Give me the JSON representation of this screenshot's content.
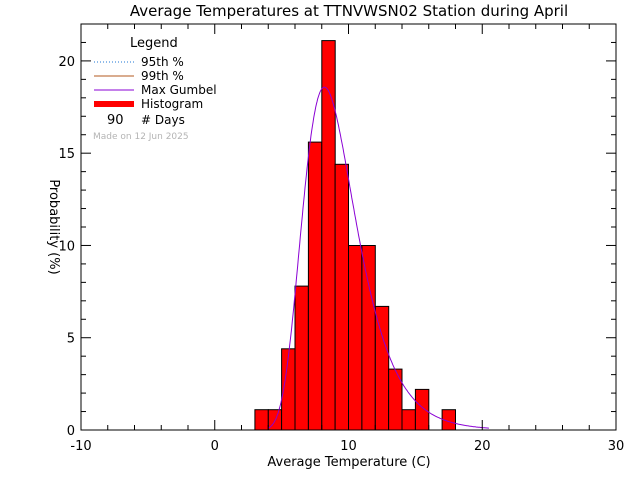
{
  "chart_data": {
    "type": "histogram",
    "title": "Average Temperatures at TTNVWSN02 Station during April",
    "xlabel": "Average Temperature (C)",
    "ylabel": "Probability (%)",
    "xlim": [
      -10,
      30
    ],
    "ylim": [
      0,
      22
    ],
    "x_ticks": [
      -10,
      0,
      10,
      20,
      30
    ],
    "y_ticks": [
      0,
      5,
      10,
      15,
      20
    ],
    "bin_width": 1,
    "bins": [
      {
        "start": 3.0,
        "value": 1.1
      },
      {
        "start": 4.0,
        "value": 1.1
      },
      {
        "start": 5.0,
        "value": 4.4
      },
      {
        "start": 6.0,
        "value": 7.8
      },
      {
        "start": 7.0,
        "value": 15.6
      },
      {
        "start": 8.0,
        "value": 21.1
      },
      {
        "start": 9.0,
        "value": 14.4
      },
      {
        "start": 10.0,
        "value": 10.0
      },
      {
        "start": 11.0,
        "value": 10.0
      },
      {
        "start": 12.0,
        "value": 6.7
      },
      {
        "start": 13.0,
        "value": 3.3
      },
      {
        "start": 14.0,
        "value": 1.1
      },
      {
        "start": 15.0,
        "value": 2.2
      },
      {
        "start": 17.0,
        "value": 1.1
      }
    ],
    "gumbel": {
      "location": 8.2,
      "scale": 1.98,
      "x_range": [
        4.0,
        20.5
      ]
    },
    "legend": {
      "title": "Legend",
      "placement": "top-left",
      "entries": [
        {
          "label": "95th %",
          "style": "dotted",
          "color": "#1f77d4"
        },
        {
          "label": "99th %",
          "style": "solid",
          "color": "#b35a1f"
        },
        {
          "label": "Max Gumbel",
          "style": "solid",
          "color": "#8a00d4"
        },
        {
          "label": "Histogram",
          "style": "thick",
          "color": "#ff0000"
        }
      ],
      "days_count": "90",
      "days_label": "# Days"
    },
    "stamp": "Made on 12 Jun 2025",
    "colors": {
      "bar": "#ff0000",
      "gumbel": "#8a00d4"
    }
  }
}
